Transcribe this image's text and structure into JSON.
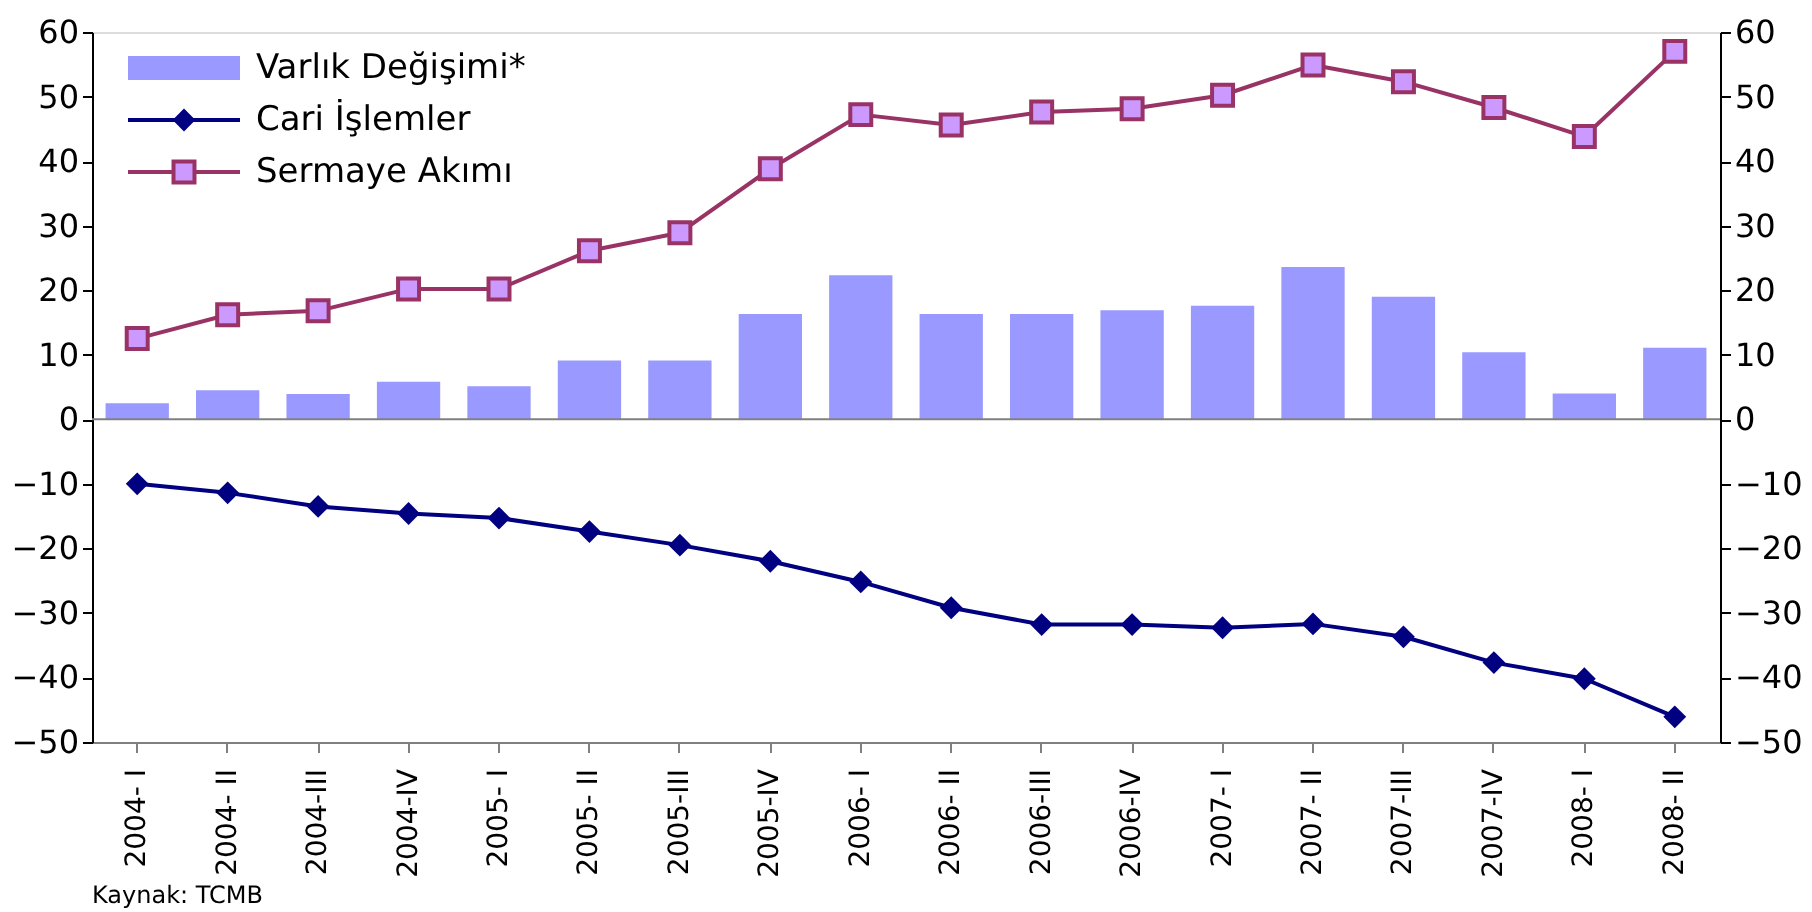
{
  "chart_data": {
    "type": "bar",
    "categories": [
      "2004- I",
      "2004- II",
      "2004-III",
      "2004-IV",
      "2005- I",
      "2005- II",
      "2005-III",
      "2005-IV",
      "2006- I",
      "2006- II",
      "2006-III",
      "2006-IV",
      "2007- I",
      "2007- II",
      "2007-III",
      "2007-IV",
      "2008- I",
      "2008- II"
    ],
    "series": [
      {
        "name": "Varlık Değişimi*",
        "color": "#9999ff",
        "values": [
          2.5,
          4.5,
          3.9,
          5.8,
          5.1,
          9.1,
          9.1,
          16.3,
          22.3,
          16.3,
          16.3,
          16.9,
          17.6,
          23.6,
          19.0,
          10.4,
          4.0,
          11.1
        ]
      },
      {
        "name": "Cari İşlemler",
        "type": "line",
        "color": "#000080",
        "marker": "diamond",
        "values": [
          -10.0,
          -11.4,
          -13.5,
          -14.6,
          -15.3,
          -17.4,
          -19.5,
          -22.0,
          -25.2,
          -29.2,
          -31.8,
          -31.8,
          -32.3,
          -31.7,
          -33.7,
          -37.7,
          -40.2,
          -46.1
        ]
      },
      {
        "name": "Sermaye Akımı",
        "type": "line",
        "color": "#993366",
        "marker": "square",
        "values": [
          12.5,
          16.2,
          16.8,
          20.2,
          20.2,
          26.1,
          28.9,
          38.8,
          47.2,
          45.6,
          47.6,
          48.1,
          50.2,
          54.9,
          52.3,
          48.3,
          43.8,
          57.0
        ]
      }
    ],
    "ylim": [
      -50,
      60
    ],
    "yticks": [
      -50,
      -40,
      -30,
      -20,
      -10,
      0,
      10,
      20,
      30,
      40,
      50,
      60
    ],
    "y2lim": [
      -50,
      60
    ],
    "y2ticks": [
      -50,
      -40,
      -30,
      -20,
      -10,
      0,
      10,
      20,
      30,
      40,
      50,
      60
    ],
    "ref_lines": [
      {
        "axis": "y",
        "value": 0,
        "color": "#808080"
      }
    ],
    "legend": "top left",
    "grid": false,
    "annotations": [
      "Kaynak: TCMB"
    ]
  }
}
